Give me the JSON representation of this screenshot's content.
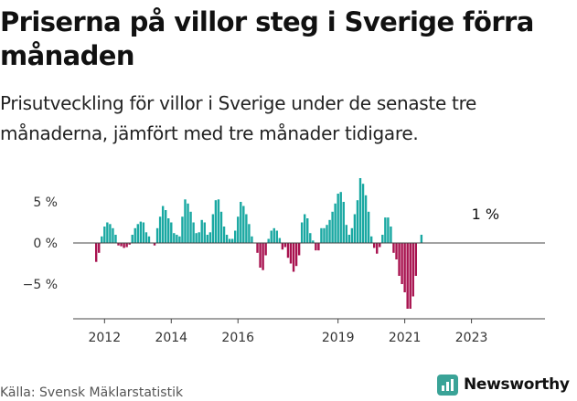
{
  "header": {
    "title": "Priserna på villor steg i Sverige förra månaden",
    "subtitle": "Prisutveckling för villor i Sverige under de senaste tre månaderna, jämfört med tre månader tidigare."
  },
  "footer": {
    "source": "Källa: Svensk Mäklarstatistik",
    "brand": "Newsworthy",
    "brand_icon": "bar-chart-logo-icon",
    "brand_color": "#3aa397"
  },
  "colors": {
    "positive": "#19a8a2",
    "negative": "#a8124f",
    "axis": "#444444",
    "text": "#111111"
  },
  "chart_data": {
    "type": "bar",
    "start": "2011-10",
    "frequency": "monthly",
    "y_unit": "%",
    "ylim": [
      -9,
      10
    ],
    "y_ticks": [
      {
        "value": 5,
        "label": "5 %"
      },
      {
        "value": 0,
        "label": "0 %"
      },
      {
        "value": -5,
        "label": "−5 %"
      }
    ],
    "x_ticks": [
      {
        "date": "2012-01",
        "label": "2012"
      },
      {
        "date": "2014-01",
        "label": "2014"
      },
      {
        "date": "2016-01",
        "label": "2016"
      },
      {
        "date": "2019-01",
        "label": "2019"
      },
      {
        "date": "2021-01",
        "label": "2021"
      },
      {
        "date": "2023-01",
        "label": "2023"
      }
    ],
    "annotation": {
      "text": "1 %",
      "date": "2023-06"
    },
    "values": [
      -2.3,
      -1.2,
      0.8,
      2.0,
      2.5,
      2.3,
      1.8,
      1.0,
      -0.3,
      -0.4,
      -0.6,
      -0.5,
      -0.2,
      1.0,
      1.8,
      2.3,
      2.6,
      2.5,
      1.3,
      0.8,
      0,
      -0.3,
      1.8,
      3.2,
      4.5,
      4.0,
      3.0,
      2.5,
      1.2,
      1.0,
      0.8,
      3.2,
      5.3,
      4.8,
      3.8,
      2.5,
      1.2,
      1.3,
      2.8,
      2.5,
      1.0,
      1.3,
      3.5,
      5.2,
      5.3,
      3.8,
      2.0,
      1.0,
      0.5,
      0.5,
      1.5,
      3.2,
      5.0,
      4.5,
      3.5,
      2.3,
      0.8,
      0,
      -1.2,
      -3.0,
      -3.3,
      -1.5,
      0.5,
      1.5,
      1.8,
      1.5,
      0.6,
      -0.8,
      -0.5,
      -1.8,
      -2.5,
      -3.5,
      -2.8,
      -1.5,
      2.5,
      3.5,
      3.0,
      1.2,
      0.3,
      -0.9,
      -0.9,
      1.8,
      1.8,
      2.2,
      2.8,
      3.8,
      4.8,
      6.0,
      6.2,
      5.0,
      2.2,
      1.0,
      1.8,
      3.5,
      5.2,
      8.0,
      7.2,
      5.8,
      3.8,
      0.8,
      -0.6,
      -1.3,
      -0.5,
      1.0,
      3.1,
      3.1,
      2.0,
      -1.2,
      -2.0,
      -4.0,
      -5.0,
      -6.0,
      -8.0,
      -8.0,
      -6.5,
      -4.0,
      0,
      1.0
    ]
  }
}
